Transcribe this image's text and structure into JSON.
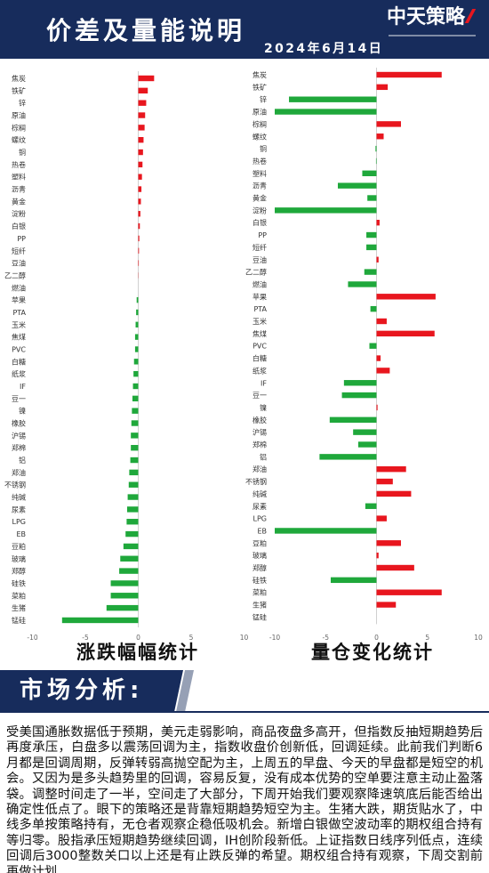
{
  "header": {
    "title": "价差及量能说明",
    "date": "2024年6月14日",
    "logo": "中天策略"
  },
  "colors": {
    "brand_navy": "#172c5c",
    "bar_up": "#e8161e",
    "bar_down": "#1fa83b",
    "logo_accent": "#e8161e"
  },
  "chart_data": [
    {
      "type": "bar",
      "orientation": "horizontal",
      "title": "涨跌幅幅统计",
      "categories": [
        "焦炭",
        "铁矿",
        "锌",
        "原油",
        "棕榈",
        "螺纹",
        "铜",
        "热卷",
        "塑料",
        "沥青",
        "黄金",
        "淀粉",
        "白银",
        "PP",
        "短纤",
        "豆油",
        "乙二醇",
        "燃油",
        "苹果",
        "PTA",
        "玉米",
        "焦煤",
        "PVC",
        "白糖",
        "纸浆",
        "IF",
        "豆一",
        "镍",
        "橡胶",
        "沪锡",
        "郑棉",
        "铝",
        "郑油",
        "不锈钢",
        "纯碱",
        "尿素",
        "LPG",
        "EB",
        "豆粕",
        "玻璃",
        "郑醇",
        "硅铁",
        "菜粕",
        "生猪",
        "锰硅"
      ],
      "values": [
        1.5,
        0.9,
        0.75,
        0.65,
        0.6,
        0.5,
        0.45,
        0.4,
        0.35,
        0.3,
        0.25,
        0.2,
        0.15,
        0.1,
        0.07,
        0.05,
        0.02,
        0,
        -0.15,
        -0.2,
        -0.25,
        -0.3,
        -0.3,
        -0.4,
        -0.45,
        -0.5,
        -0.55,
        -0.6,
        -0.65,
        -0.7,
        -0.7,
        -0.75,
        -0.85,
        -0.9,
        -1.0,
        -1.05,
        -1.1,
        -1.2,
        -1.4,
        -1.7,
        -1.8,
        -2.6,
        -2.6,
        -3.0,
        -7.2
      ],
      "xlim": [
        -10,
        10
      ],
      "xticks": [
        -10,
        -5,
        0,
        5,
        10
      ],
      "grid": false
    },
    {
      "type": "bar",
      "orientation": "horizontal",
      "title": "量仓变化统计",
      "categories": [
        "焦炭",
        "铁矿",
        "锌",
        "原油",
        "棕榈",
        "螺纹",
        "铜",
        "热卷",
        "塑料",
        "沥青",
        "黄金",
        "淀粉",
        "白银",
        "PP",
        "短纤",
        "豆油",
        "乙二醇",
        "燃油",
        "苹果",
        "PTA",
        "玉米",
        "焦煤",
        "PVC",
        "白糖",
        "纸浆",
        "IF",
        "豆一",
        "镍",
        "橡胶",
        "沪锡",
        "郑棉",
        "铝",
        "郑油",
        "不锈钢",
        "纯碱",
        "尿素",
        "LPG",
        "EB",
        "豆粕",
        "玻璃",
        "郑醇",
        "硅铁",
        "菜粕",
        "生猪",
        "锰硅"
      ],
      "values": [
        6.4,
        1.1,
        -8.6,
        -10,
        2.4,
        0.7,
        -0.1,
        -0.05,
        -1.4,
        -3.8,
        -0.9,
        -10,
        0.3,
        -1.0,
        -1.0,
        0.2,
        -1.2,
        -2.8,
        5.8,
        -0.6,
        1.0,
        5.7,
        -0.7,
        0.4,
        1.3,
        -3.2,
        -3.4,
        0.1,
        -4.6,
        -2.3,
        -1.8,
        -5.6,
        2.9,
        1.6,
        3.4,
        -1.1,
        1.0,
        -10,
        2.4,
        0.2,
        3.7,
        -4.5,
        6.4,
        1.9,
        0
      ],
      "xlim": [
        -10,
        10
      ],
      "xticks": [
        -10,
        -5,
        0,
        5,
        10
      ],
      "grid": false
    }
  ],
  "analysis": {
    "heading": "市场分析:",
    "body": "受美国通胀数据低于预期，美元走弱影响，商品夜盘多高开，但指数反抽短期趋势后再度承压，白盘多以震荡回调为主，指数收盘价创新低，回调延续。此前我们判断6月都是回调周期，反弹转弱高抛空配为主，上周五的早盘、今天的早盘都是短空的机会。又因为是多头趋势里的回调，容易反复，没有成本优势的空单要注意主动止盈落袋。调整时间走了一半，空间走了大部分，下周开始我们要观察降速筑底后能否给出确定性低点了。眼下的策略还是背靠短期趋势短空为主。生猪大跌，期货贴水了，中线多单按策略持有，无仓者观察企稳低吸机会。新增白银做空波动率的期权组合持有等归零。股指承压短期趋势继续回调，IH创阶段新低。上证指数日线序列低点，连续回调后3000整数关口以上还是有止跌反弹的希望。期权组合持有观察，下周交割前再做计划"
  }
}
